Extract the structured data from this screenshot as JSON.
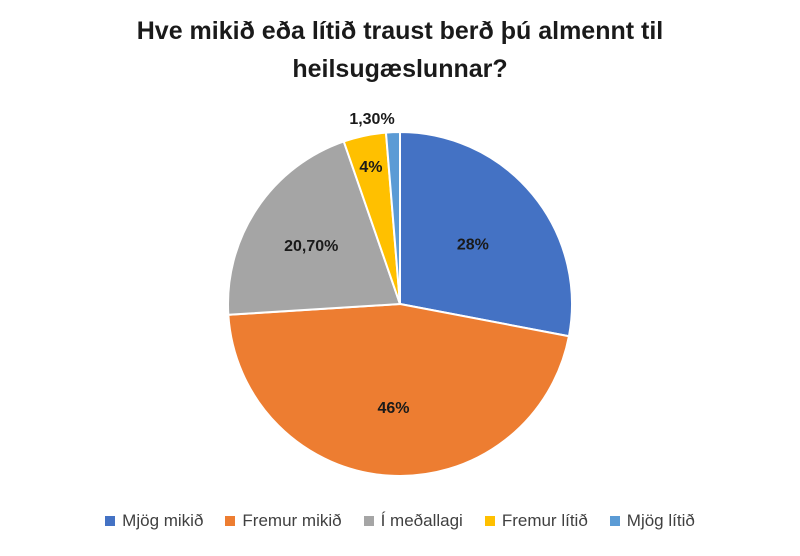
{
  "chart_data": {
    "type": "pie",
    "title_lines": [
      "Hve mikið eða lítið traust berð þú almennt til",
      "heilsugæslunnar?"
    ],
    "categories": [
      "Mjög mikið",
      "Fremur mikið",
      "Í meðallagi",
      "Fremur lítið",
      "Mjög lítið"
    ],
    "values": [
      28,
      46,
      20.7,
      4,
      1.3
    ],
    "data_labels": [
      "28%",
      "46%",
      "20,70%",
      "4%",
      "1,30%"
    ],
    "colors": [
      "#4472C4",
      "#ED7D31",
      "#A5A5A5",
      "#FFC000",
      "#5B9BD5"
    ],
    "legend_position": "bottom"
  }
}
